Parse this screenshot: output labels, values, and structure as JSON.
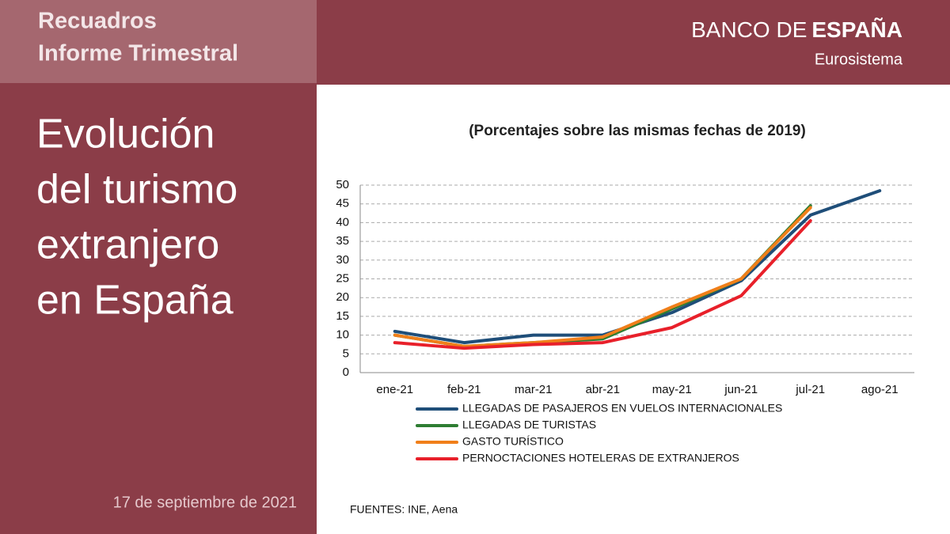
{
  "header": {
    "box_lines": [
      "Recuadros",
      "Informe Trimestral"
    ],
    "brand_light": "BANCO DE",
    "brand_bold": "ESPAÑA",
    "brand_sub": "Eurosistema"
  },
  "side": {
    "title_lines": [
      "Evolución",
      "del turismo",
      "extranjero",
      "en España"
    ],
    "date": "17 de septiembre de 2021"
  },
  "source": "FUENTES: INE, Aena",
  "chart_data": {
    "type": "line",
    "title": "(Porcentajes sobre las mismas fechas de 2019)",
    "categories": [
      "ene-21",
      "feb-21",
      "mar-21",
      "abr-21",
      "may-21",
      "jun-21",
      "jul-21",
      "ago-21"
    ],
    "series": [
      {
        "name": "LLEGADAS DE PASAJEROS EN VUELOS INTERNACIONALES",
        "color": "#1f4e79",
        "values": [
          11,
          8,
          10,
          10,
          16,
          24.5,
          42,
          48.5
        ]
      },
      {
        "name": "LLEGADAS DE TURISTAS",
        "color": "#2e7d32",
        "values": [
          10,
          7,
          8,
          9,
          17,
          25,
          44.5,
          null
        ]
      },
      {
        "name": "GASTO TURÍSTICO",
        "color": "#f07f1a",
        "values": [
          10,
          7,
          8,
          9.5,
          17.5,
          25,
          44,
          null
        ]
      },
      {
        "name": "PERNOCTACIONES HOTELERAS DE EXTRANJEROS",
        "color": "#e8202a",
        "values": [
          8,
          6.5,
          7.5,
          8,
          12,
          20.5,
          40.5,
          null
        ]
      }
    ],
    "ylim": [
      0,
      50
    ],
    "yticks": [
      0,
      5,
      10,
      15,
      20,
      25,
      30,
      35,
      40,
      45,
      50
    ],
    "grid": true
  }
}
